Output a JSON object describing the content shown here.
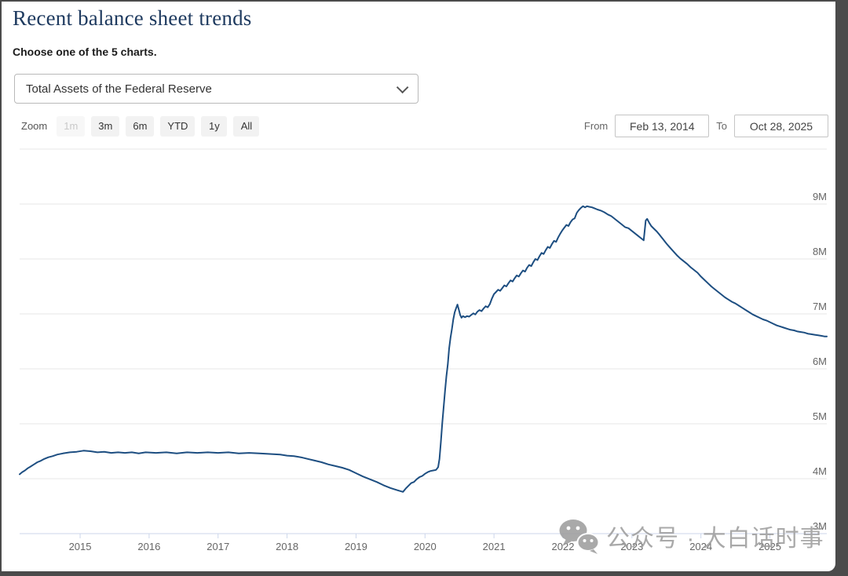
{
  "page": {
    "title": "Recent balance sheet trends",
    "subtitle": "Choose one of the 5 charts.",
    "chart_selector": {
      "selected": "Total Assets of the Federal Reserve"
    },
    "range_selector": {
      "zoom_label": "Zoom",
      "buttons": [
        {
          "label": "1m",
          "enabled": false
        },
        {
          "label": "3m",
          "enabled": true
        },
        {
          "label": "6m",
          "enabled": true
        },
        {
          "label": "YTD",
          "enabled": true
        },
        {
          "label": "1y",
          "enabled": true
        },
        {
          "label": "All",
          "enabled": true
        }
      ],
      "from_label": "From",
      "from_value": "Feb 13, 2014",
      "to_label": "To",
      "to_value": "Oct 28, 2025"
    },
    "watermark_text": "公众号 · 大白话时事"
  },
  "colors": {
    "title": "#1e3a5f",
    "line": "#1d4e81",
    "gridline": "#e7e7e7",
    "axis_line": "#ccd6eb",
    "axis_label": "#666666",
    "watermark": "#9b9b9b"
  },
  "chart_data": {
    "type": "line",
    "title": "",
    "xlabel": "",
    "ylabel": "",
    "legend": "none",
    "grid": true,
    "xaxis": {
      "min": 2014.123,
      "max": 2025.825,
      "ticks": [
        2015,
        2016,
        2017,
        2018,
        2019,
        2020,
        2021,
        2022,
        2023,
        2024,
        2025
      ]
    },
    "yaxis": {
      "min": 3,
      "max": 10,
      "unit": "M",
      "gridlines": [
        10,
        9,
        8,
        7,
        6,
        5,
        4
      ],
      "labels": [
        {
          "label": "9M",
          "value": 9
        },
        {
          "label": "8M",
          "value": 8
        },
        {
          "label": "7M",
          "value": 7
        },
        {
          "label": "6M",
          "value": 6
        },
        {
          "label": "5M",
          "value": 5
        },
        {
          "label": "4M",
          "value": 4
        },
        {
          "label": "3M",
          "value": 3
        }
      ]
    },
    "series": [
      {
        "name": "Total Assets of the Federal Reserve",
        "color": "#1d4e81",
        "points": [
          [
            2014.123,
            4.08
          ],
          [
            2014.16,
            4.12
          ],
          [
            2014.2,
            4.15
          ],
          [
            2014.24,
            4.19
          ],
          [
            2014.28,
            4.22
          ],
          [
            2014.33,
            4.26
          ],
          [
            2014.38,
            4.3
          ],
          [
            2014.42,
            4.32
          ],
          [
            2014.48,
            4.36
          ],
          [
            2014.54,
            4.39
          ],
          [
            2014.6,
            4.41
          ],
          [
            2014.67,
            4.44
          ],
          [
            2014.75,
            4.46
          ],
          [
            2014.85,
            4.48
          ],
          [
            2014.95,
            4.49
          ],
          [
            2015.05,
            4.51
          ],
          [
            2015.15,
            4.5
          ],
          [
            2015.25,
            4.48
          ],
          [
            2015.35,
            4.49
          ],
          [
            2015.45,
            4.47
          ],
          [
            2015.55,
            4.48
          ],
          [
            2015.65,
            4.47
          ],
          [
            2015.75,
            4.48
          ],
          [
            2015.85,
            4.46
          ],
          [
            2015.95,
            4.48
          ],
          [
            2016.1,
            4.47
          ],
          [
            2016.25,
            4.48
          ],
          [
            2016.4,
            4.46
          ],
          [
            2016.55,
            4.48
          ],
          [
            2016.7,
            4.47
          ],
          [
            2016.85,
            4.48
          ],
          [
            2017.0,
            4.47
          ],
          [
            2017.15,
            4.48
          ],
          [
            2017.3,
            4.46
          ],
          [
            2017.45,
            4.47
          ],
          [
            2017.6,
            4.46
          ],
          [
            2017.75,
            4.45
          ],
          [
            2017.9,
            4.44
          ],
          [
            2018.0,
            4.42
          ],
          [
            2018.1,
            4.41
          ],
          [
            2018.2,
            4.39
          ],
          [
            2018.3,
            4.36
          ],
          [
            2018.4,
            4.33
          ],
          [
            2018.5,
            4.3
          ],
          [
            2018.6,
            4.26
          ],
          [
            2018.7,
            4.23
          ],
          [
            2018.8,
            4.2
          ],
          [
            2018.9,
            4.16
          ],
          [
            2019.0,
            4.1
          ],
          [
            2019.1,
            4.04
          ],
          [
            2019.2,
            3.99
          ],
          [
            2019.3,
            3.94
          ],
          [
            2019.4,
            3.88
          ],
          [
            2019.5,
            3.83
          ],
          [
            2019.6,
            3.79
          ],
          [
            2019.68,
            3.76
          ],
          [
            2019.72,
            3.82
          ],
          [
            2019.76,
            3.87
          ],
          [
            2019.8,
            3.92
          ],
          [
            2019.84,
            3.94
          ],
          [
            2019.88,
            3.99
          ],
          [
            2019.92,
            4.03
          ],
          [
            2019.96,
            4.05
          ],
          [
            2020.0,
            4.09
          ],
          [
            2020.04,
            4.12
          ],
          [
            2020.08,
            4.14
          ],
          [
            2020.12,
            4.15
          ],
          [
            2020.16,
            4.16
          ],
          [
            2020.19,
            4.21
          ],
          [
            2020.21,
            4.36
          ],
          [
            2020.23,
            4.67
          ],
          [
            2020.25,
            5.0
          ],
          [
            2020.27,
            5.3
          ],
          [
            2020.29,
            5.6
          ],
          [
            2020.31,
            5.86
          ],
          [
            2020.33,
            6.08
          ],
          [
            2020.35,
            6.37
          ],
          [
            2020.37,
            6.57
          ],
          [
            2020.39,
            6.72
          ],
          [
            2020.41,
            6.9
          ],
          [
            2020.43,
            7.03
          ],
          [
            2020.45,
            7.1
          ],
          [
            2020.47,
            7.17
          ],
          [
            2020.49,
            7.08
          ],
          [
            2020.51,
            6.98
          ],
          [
            2020.53,
            6.93
          ],
          [
            2020.55,
            6.96
          ],
          [
            2020.58,
            6.94
          ],
          [
            2020.61,
            6.96
          ],
          [
            2020.64,
            6.95
          ],
          [
            2020.67,
            6.98
          ],
          [
            2020.7,
            7.01
          ],
          [
            2020.73,
            6.99
          ],
          [
            2020.76,
            7.04
          ],
          [
            2020.79,
            7.07
          ],
          [
            2020.82,
            7.05
          ],
          [
            2020.85,
            7.1
          ],
          [
            2020.88,
            7.14
          ],
          [
            2020.91,
            7.12
          ],
          [
            2020.94,
            7.18
          ],
          [
            2020.97,
            7.28
          ],
          [
            2021.0,
            7.36
          ],
          [
            2021.03,
            7.4
          ],
          [
            2021.06,
            7.44
          ],
          [
            2021.09,
            7.42
          ],
          [
            2021.12,
            7.47
          ],
          [
            2021.15,
            7.52
          ],
          [
            2021.18,
            7.5
          ],
          [
            2021.21,
            7.56
          ],
          [
            2021.24,
            7.61
          ],
          [
            2021.27,
            7.59
          ],
          [
            2021.3,
            7.65
          ],
          [
            2021.33,
            7.7
          ],
          [
            2021.36,
            7.68
          ],
          [
            2021.39,
            7.74
          ],
          [
            2021.42,
            7.79
          ],
          [
            2021.45,
            7.77
          ],
          [
            2021.48,
            7.84
          ],
          [
            2021.51,
            7.89
          ],
          [
            2021.54,
            7.87
          ],
          [
            2021.57,
            7.94
          ],
          [
            2021.6,
            8.0
          ],
          [
            2021.63,
            7.98
          ],
          [
            2021.66,
            8.05
          ],
          [
            2021.69,
            8.11
          ],
          [
            2021.72,
            8.09
          ],
          [
            2021.75,
            8.16
          ],
          [
            2021.78,
            8.22
          ],
          [
            2021.81,
            8.2
          ],
          [
            2021.84,
            8.27
          ],
          [
            2021.87,
            8.33
          ],
          [
            2021.9,
            8.31
          ],
          [
            2021.93,
            8.39
          ],
          [
            2021.96,
            8.46
          ],
          [
            2021.99,
            8.52
          ],
          [
            2022.02,
            8.57
          ],
          [
            2022.05,
            8.62
          ],
          [
            2022.08,
            8.6
          ],
          [
            2022.11,
            8.67
          ],
          [
            2022.14,
            8.72
          ],
          [
            2022.17,
            8.74
          ],
          [
            2022.2,
            8.84
          ],
          [
            2022.23,
            8.89
          ],
          [
            2022.26,
            8.93
          ],
          [
            2022.29,
            8.96
          ],
          [
            2022.32,
            8.94
          ],
          [
            2022.35,
            8.96
          ],
          [
            2022.38,
            8.95
          ],
          [
            2022.42,
            8.94
          ],
          [
            2022.46,
            8.92
          ],
          [
            2022.5,
            8.9
          ],
          [
            2022.55,
            8.88
          ],
          [
            2022.6,
            8.85
          ],
          [
            2022.65,
            8.81
          ],
          [
            2022.7,
            8.78
          ],
          [
            2022.75,
            8.73
          ],
          [
            2022.8,
            8.68
          ],
          [
            2022.85,
            8.63
          ],
          [
            2022.9,
            8.58
          ],
          [
            2022.95,
            8.56
          ],
          [
            2023.0,
            8.51
          ],
          [
            2023.05,
            8.46
          ],
          [
            2023.1,
            8.41
          ],
          [
            2023.14,
            8.37
          ],
          [
            2023.17,
            8.34
          ],
          [
            2023.2,
            8.7
          ],
          [
            2023.22,
            8.73
          ],
          [
            2023.25,
            8.66
          ],
          [
            2023.28,
            8.6
          ],
          [
            2023.32,
            8.55
          ],
          [
            2023.36,
            8.5
          ],
          [
            2023.4,
            8.44
          ],
          [
            2023.45,
            8.36
          ],
          [
            2023.5,
            8.28
          ],
          [
            2023.55,
            8.21
          ],
          [
            2023.6,
            8.14
          ],
          [
            2023.65,
            8.07
          ],
          [
            2023.7,
            8.01
          ],
          [
            2023.75,
            7.96
          ],
          [
            2023.8,
            7.91
          ],
          [
            2023.85,
            7.85
          ],
          [
            2023.9,
            7.8
          ],
          [
            2023.95,
            7.75
          ],
          [
            2024.0,
            7.68
          ],
          [
            2024.05,
            7.62
          ],
          [
            2024.1,
            7.56
          ],
          [
            2024.15,
            7.5
          ],
          [
            2024.2,
            7.45
          ],
          [
            2024.25,
            7.4
          ],
          [
            2024.3,
            7.35
          ],
          [
            2024.35,
            7.3
          ],
          [
            2024.4,
            7.26
          ],
          [
            2024.45,
            7.22
          ],
          [
            2024.5,
            7.19
          ],
          [
            2024.55,
            7.15
          ],
          [
            2024.6,
            7.11
          ],
          [
            2024.65,
            7.07
          ],
          [
            2024.7,
            7.03
          ],
          [
            2024.75,
            6.99
          ],
          [
            2024.8,
            6.96
          ],
          [
            2024.85,
            6.93
          ],
          [
            2024.9,
            6.9
          ],
          [
            2024.95,
            6.88
          ],
          [
            2025.0,
            6.85
          ],
          [
            2025.05,
            6.82
          ],
          [
            2025.1,
            6.79
          ],
          [
            2025.15,
            6.77
          ],
          [
            2025.2,
            6.75
          ],
          [
            2025.25,
            6.73
          ],
          [
            2025.3,
            6.71
          ],
          [
            2025.35,
            6.7
          ],
          [
            2025.4,
            6.68
          ],
          [
            2025.45,
            6.67
          ],
          [
            2025.5,
            6.66
          ],
          [
            2025.55,
            6.64
          ],
          [
            2025.6,
            6.63
          ],
          [
            2025.65,
            6.62
          ],
          [
            2025.7,
            6.61
          ],
          [
            2025.75,
            6.6
          ],
          [
            2025.79,
            6.59
          ],
          [
            2025.825,
            6.59
          ]
        ]
      }
    ]
  }
}
